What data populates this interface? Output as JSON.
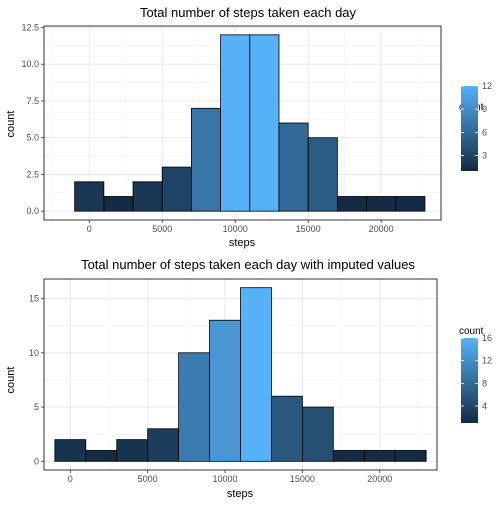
{
  "chart_data": [
    {
      "type": "bar",
      "title": "Total number of steps taken each day",
      "xlabel": "steps",
      "ylabel": "count",
      "x_ticks": [
        0,
        5000,
        10000,
        15000,
        20000
      ],
      "x_tick_labels": [
        "0",
        "5000",
        "10000",
        "15000",
        "20000"
      ],
      "y_ticks": [
        0,
        2.5,
        5,
        7.5,
        10,
        12.5
      ],
      "y_tick_labels": [
        "0.0",
        "2.5",
        "5.0",
        "7.5",
        "10.0",
        "12.5"
      ],
      "xlim": [
        -3100,
        24100
      ],
      "ylim": [
        -0.6,
        12.6
      ],
      "bin_width": 2000,
      "bins": [
        {
          "x": 0,
          "count": 2
        },
        {
          "x": 2000,
          "count": 1
        },
        {
          "x": 4000,
          "count": 2
        },
        {
          "x": 6000,
          "count": 3
        },
        {
          "x": 8000,
          "count": 7
        },
        {
          "x": 10000,
          "count": 12
        },
        {
          "x": 12000,
          "count": 12
        },
        {
          "x": 14000,
          "count": 6
        },
        {
          "x": 16000,
          "count": 5
        },
        {
          "x": 18000,
          "count": 1
        },
        {
          "x": 20000,
          "count": 1
        },
        {
          "x": 22000,
          "count": 1
        }
      ],
      "legend": {
        "title": "count",
        "position": "right",
        "min": 1,
        "max": 12,
        "ticks": [
          3,
          6,
          9,
          12
        ],
        "tick_labels": [
          "3",
          "6",
          "9",
          "12"
        ],
        "color_low": "#132b43",
        "color_high": "#56b1f7"
      },
      "grid": true
    },
    {
      "type": "bar",
      "title": "Total number of steps taken each day with imputed values",
      "xlabel": "steps",
      "ylabel": "count",
      "x_ticks": [
        0,
        5000,
        10000,
        15000,
        20000
      ],
      "x_tick_labels": [
        "0",
        "5000",
        "10000",
        "15000",
        "20000"
      ],
      "y_ticks": [
        0,
        5,
        10,
        15
      ],
      "y_tick_labels": [
        "0",
        "5",
        "10",
        "15"
      ],
      "xlim": [
        -1700,
        23700
      ],
      "ylim": [
        -0.8,
        16.8
      ],
      "bin_width": 2000,
      "bins": [
        {
          "x": 0,
          "count": 2
        },
        {
          "x": 2000,
          "count": 1
        },
        {
          "x": 4000,
          "count": 2
        },
        {
          "x": 6000,
          "count": 3
        },
        {
          "x": 8000,
          "count": 10
        },
        {
          "x": 10000,
          "count": 13
        },
        {
          "x": 12000,
          "count": 16
        },
        {
          "x": 14000,
          "count": 6
        },
        {
          "x": 16000,
          "count": 5
        },
        {
          "x": 18000,
          "count": 1
        },
        {
          "x": 20000,
          "count": 1
        },
        {
          "x": 22000,
          "count": 1
        }
      ],
      "legend": {
        "title": "count",
        "position": "right",
        "min": 1,
        "max": 16,
        "ticks": [
          4,
          8,
          12,
          16
        ],
        "tick_labels": [
          "4",
          "8",
          "12",
          "16"
        ],
        "color_low": "#132b43",
        "color_high": "#56b1f7"
      },
      "grid": true
    }
  ]
}
